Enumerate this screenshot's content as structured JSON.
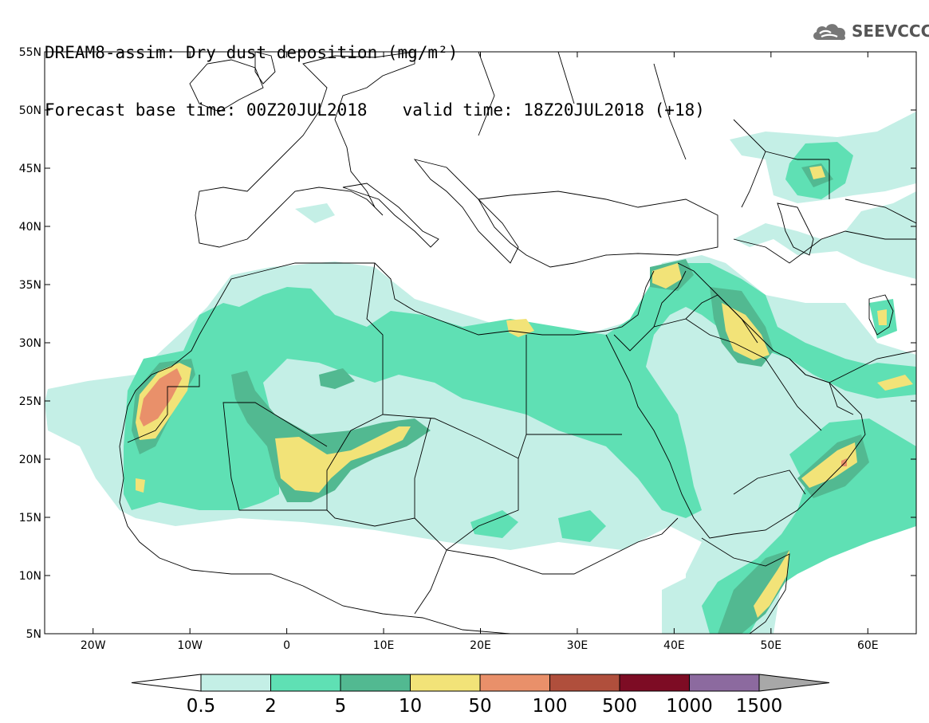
{
  "header": {
    "title": "DREAM8-assim: Dry dust deposition (mg/m²)",
    "base_time": "Forecast base time: 00Z20JUL2018",
    "valid_time": "valid time: 18Z20JUL2018 (+18)"
  },
  "logo": {
    "text": "SEEVCCC",
    "icon": "cloud-icon"
  },
  "chart_data": {
    "type": "heatmap",
    "lon_range": [
      -25,
      65
    ],
    "lat_range": [
      5,
      55
    ],
    "x_ticks": [
      {
        "value": -20,
        "label": "20W"
      },
      {
        "value": -10,
        "label": "10W"
      },
      {
        "value": 0,
        "label": "0"
      },
      {
        "value": 10,
        "label": "10E"
      },
      {
        "value": 20,
        "label": "20E"
      },
      {
        "value": 30,
        "label": "30E"
      },
      {
        "value": 40,
        "label": "40E"
      },
      {
        "value": 50,
        "label": "50E"
      },
      {
        "value": 60,
        "label": "60E"
      }
    ],
    "y_ticks": [
      {
        "value": 55,
        "label": "55N"
      },
      {
        "value": 50,
        "label": "50N"
      },
      {
        "value": 45,
        "label": "45N"
      },
      {
        "value": 40,
        "label": "40N"
      },
      {
        "value": 35,
        "label": "35N"
      },
      {
        "value": 30,
        "label": "30N"
      },
      {
        "value": 25,
        "label": "25N"
      },
      {
        "value": 20,
        "label": "20N"
      },
      {
        "value": 15,
        "label": "15N"
      },
      {
        "value": 10,
        "label": "10N"
      },
      {
        "value": 5,
        "label": "5N"
      }
    ],
    "colorbar": {
      "levels": [
        "0.5",
        "2",
        "5",
        "10",
        "50",
        "100",
        "500",
        "1000",
        "1500"
      ],
      "colors": [
        "#c4efe6",
        "#5fe0b4",
        "#52b991",
        "#f2e378",
        "#e9906a",
        "#b04f3c",
        "#7d0c24",
        "#8c6a9f"
      ],
      "under_color": "#ffffff",
      "over_color": "#a8a8a8"
    }
  }
}
